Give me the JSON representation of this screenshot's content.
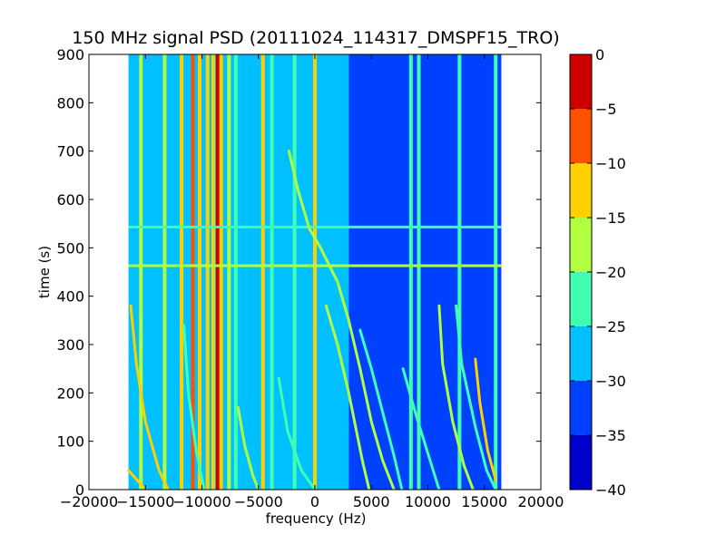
{
  "chart_data": {
    "type": "heatmap",
    "title": "150 MHz signal PSD (20111024_114317_DMSPF15_TRO)",
    "xlabel": "frequency (Hz)",
    "ylabel": "time (s)",
    "xlim": [
      -20000,
      20000
    ],
    "ylim": [
      0,
      900
    ],
    "data_extent_x": [
      -16500,
      16500
    ],
    "x_ticks": [
      -20000,
      -15000,
      -10000,
      -5000,
      0,
      5000,
      10000,
      15000,
      20000
    ],
    "x_tick_labels": [
      "−20000",
      "−15000",
      "−10000",
      "−5000",
      "0",
      "5000",
      "10000",
      "15000",
      "20000"
    ],
    "y_ticks": [
      0,
      100,
      200,
      300,
      400,
      500,
      600,
      700,
      800,
      900
    ],
    "y_tick_labels": [
      "0",
      "100",
      "200",
      "300",
      "400",
      "500",
      "600",
      "700",
      "800",
      "900"
    ],
    "colorbar": {
      "levels": [
        -40,
        -35,
        -30,
        -25,
        -20,
        -15,
        -10,
        -5,
        0
      ],
      "tick_labels": [
        "−40",
        "−35",
        "−30",
        "−25",
        "−20",
        "−15",
        "−10",
        "−5",
        "0"
      ],
      "colors": [
        "#0000cd",
        "#0040ff",
        "#00c0ff",
        "#40ffb0",
        "#b0ff40",
        "#ffd000",
        "#ff5000",
        "#cd0000"
      ]
    },
    "background_level_left": -30,
    "background_level_right": -35,
    "vertical_lines": [
      {
        "x": -15400,
        "level": -20
      },
      {
        "x": -13300,
        "level": -20
      },
      {
        "x": -11800,
        "level": -15
      },
      {
        "x": -10800,
        "level": -10
      },
      {
        "x": -10200,
        "level": -15
      },
      {
        "x": -9500,
        "level": -15
      },
      {
        "x": -9000,
        "level": -15
      },
      {
        "x": -8600,
        "level": -5
      },
      {
        "x": -8300,
        "level": -15
      },
      {
        "x": -7600,
        "level": -20
      },
      {
        "x": -7000,
        "level": -25
      },
      {
        "x": -4600,
        "level": -15
      },
      {
        "x": -3800,
        "level": -25
      },
      {
        "x": -1800,
        "level": -25
      },
      {
        "x": 0,
        "level": -15
      },
      {
        "x": 8500,
        "level": -25
      },
      {
        "x": 9200,
        "level": -25
      },
      {
        "x": 12800,
        "level": -25
      },
      {
        "x": 16000,
        "level": -25
      }
    ],
    "horizontal_lines": [
      {
        "y": 463,
        "level": -20
      },
      {
        "y": 543,
        "level": -25
      }
    ],
    "chirp_tracks": [
      {
        "level": -15,
        "points": [
          [
            -16300,
            380
          ],
          [
            -15800,
            260
          ],
          [
            -15000,
            140
          ],
          [
            -13800,
            40
          ],
          [
            -13000,
            0
          ]
        ]
      },
      {
        "level": -15,
        "points": [
          [
            -16500,
            40
          ],
          [
            -15000,
            0
          ]
        ]
      },
      {
        "level": -25,
        "points": [
          [
            -11600,
            340
          ],
          [
            -11200,
            200
          ],
          [
            -10500,
            80
          ],
          [
            -9800,
            0
          ]
        ]
      },
      {
        "level": -20,
        "points": [
          [
            -6800,
            170
          ],
          [
            -6200,
            90
          ],
          [
            -5500,
            30
          ],
          [
            -5000,
            0
          ]
        ]
      },
      {
        "level": -25,
        "points": [
          [
            -3200,
            230
          ],
          [
            -2400,
            120
          ],
          [
            -1200,
            40
          ],
          [
            0,
            0
          ]
        ]
      },
      {
        "level": -20,
        "points": [
          [
            -2300,
            700
          ],
          [
            -1500,
            620
          ],
          [
            -500,
            540
          ],
          [
            500,
            500
          ],
          [
            2000,
            430
          ],
          [
            3000,
            350
          ],
          [
            4000,
            250
          ],
          [
            5000,
            140
          ],
          [
            6000,
            60
          ],
          [
            7000,
            0
          ]
        ]
      },
      {
        "level": -20,
        "points": [
          [
            1000,
            380
          ],
          [
            2000,
            300
          ],
          [
            3000,
            200
          ],
          [
            4200,
            60
          ],
          [
            4800,
            0
          ]
        ]
      },
      {
        "level": -25,
        "points": [
          [
            4000,
            330
          ],
          [
            5000,
            250
          ],
          [
            6000,
            160
          ],
          [
            7000,
            70
          ],
          [
            7700,
            0
          ]
        ]
      },
      {
        "level": -25,
        "points": [
          [
            7800,
            250
          ],
          [
            9000,
            150
          ],
          [
            10200,
            60
          ],
          [
            11000,
            0
          ]
        ]
      },
      {
        "level": -20,
        "points": [
          [
            11000,
            380
          ],
          [
            11300,
            260
          ],
          [
            12200,
            140
          ],
          [
            13200,
            50
          ],
          [
            14000,
            0
          ]
        ]
      },
      {
        "level": -25,
        "points": [
          [
            12500,
            380
          ],
          [
            13000,
            260
          ],
          [
            14200,
            130
          ],
          [
            15200,
            40
          ],
          [
            16000,
            0
          ]
        ]
      },
      {
        "level": -15,
        "points": [
          [
            14200,
            270
          ],
          [
            14600,
            180
          ],
          [
            15300,
            80
          ],
          [
            16000,
            20
          ]
        ]
      }
    ]
  }
}
